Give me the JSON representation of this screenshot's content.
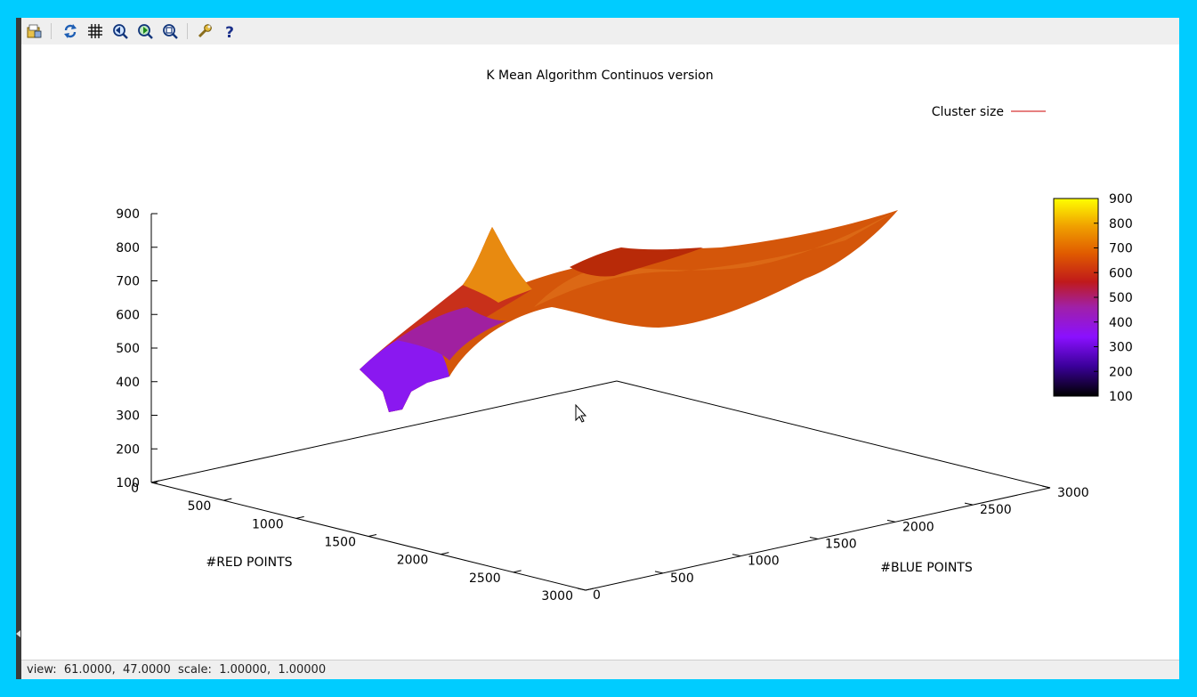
{
  "window": {
    "status": "view:  61.0000,  47.0000  scale:  1.00000,  1.00000"
  },
  "toolbar": {
    "buttons": [
      {
        "name": "export-button",
        "icon": "export-icon"
      },
      {
        "name": "replot-button",
        "icon": "refresh-icon"
      },
      {
        "name": "grid-button",
        "icon": "grid-icon"
      },
      {
        "name": "previous-zoom-button",
        "icon": "zoom-previous-icon"
      },
      {
        "name": "next-zoom-button",
        "icon": "zoom-next-icon"
      },
      {
        "name": "autoscale-button",
        "icon": "zoom-fit-icon"
      },
      {
        "name": "options-button",
        "icon": "wrench-icon"
      },
      {
        "name": "help-button",
        "icon": "help-icon"
      }
    ]
  },
  "chart_data": {
    "type": "surface",
    "title": "K Mean Algorithm Continuos version",
    "xlabel": "#RED POINTS",
    "ylabel": "#BLUE POINTS",
    "zlabel": "",
    "xlim": [
      0,
      3000
    ],
    "ylim": [
      0,
      3000
    ],
    "zlim": [
      100,
      900
    ],
    "x_ticks": [
      "0",
      "500",
      "1000",
      "1500",
      "2000",
      "2500",
      "3000"
    ],
    "y_ticks": [
      "0",
      "500",
      "1000",
      "1500",
      "2000",
      "2500",
      "3000"
    ],
    "z_ticks": [
      "100",
      "200",
      "300",
      "400",
      "500",
      "600",
      "700",
      "800",
      "900"
    ],
    "legend": {
      "position": "top-right",
      "entries": [
        {
          "label": "Cluster size",
          "color": "#cc0000"
        }
      ]
    },
    "colorbar": {
      "range": [
        100,
        900
      ],
      "ticks": [
        "100",
        "200",
        "300",
        "400",
        "500",
        "600",
        "700",
        "800",
        "900"
      ]
    },
    "view": {
      "rot_x": 61,
      "rot_z": 47
    }
  }
}
